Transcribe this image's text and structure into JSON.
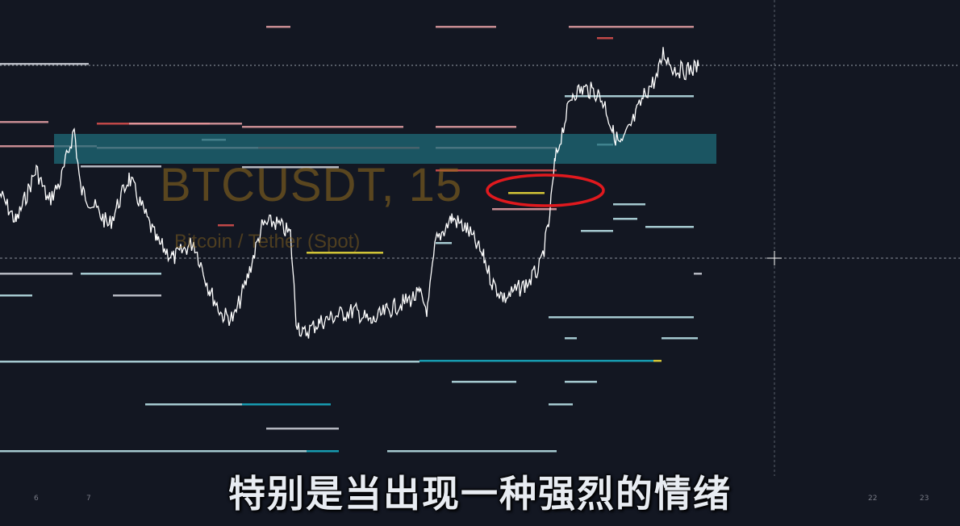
{
  "chart": {
    "symbol_title": "BTCUSDT, 15",
    "symbol_description": "Bitcoin / Tether (Spot)",
    "zone_color": "#1f6b78",
    "annotation_color": "#e0191e",
    "price_color": "#ffffff",
    "level_colors": {
      "pink": "#e8a1a6",
      "red": "#e0514f",
      "white": "#d1d4dc",
      "cyan": "#bfe9ee",
      "teal": "#17a2b8",
      "yellow": "#f5e33b"
    }
  },
  "time_axis": {
    "labels": [
      "6",
      "7",
      "22",
      "23"
    ]
  },
  "subtitle": {
    "text": "特别是当出现一种强烈的情绪"
  }
}
